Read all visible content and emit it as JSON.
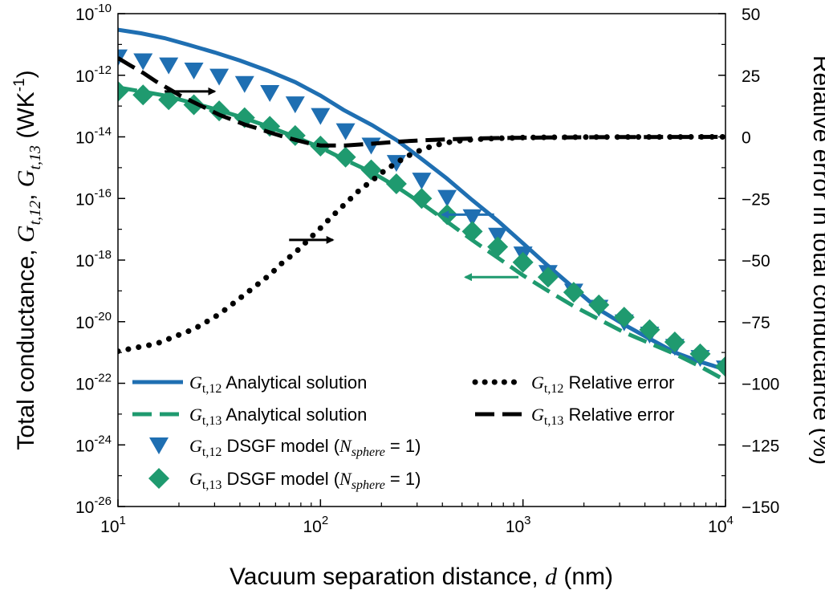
{
  "chart_data": {
    "type": "line",
    "x_axis": {
      "label_prefix": "Vacuum separation distance, ",
      "label_var": "d",
      "label_unit": " (nm)",
      "scale": "log",
      "range": [
        10,
        10000
      ],
      "ticks": [
        {
          "value": 10,
          "base": "10",
          "exp": "1"
        },
        {
          "value": 100,
          "base": "10",
          "exp": "2"
        },
        {
          "value": 1000,
          "base": "10",
          "exp": "3"
        },
        {
          "value": 10000,
          "base": "10",
          "exp": "4"
        }
      ]
    },
    "y_axis_left": {
      "label_prefix": "Total conductance, ",
      "label_var1": "G",
      "label_sub1": "t,12",
      "label_sep": ", ",
      "label_var2": "G",
      "label_sub2": "t,13",
      "label_unit": " (WK",
      "label_unit_exp": "-1",
      "label_unit_close": ")",
      "scale": "log",
      "range": [
        1e-26,
        1e-10
      ],
      "ticks": [
        {
          "value": 1e-10,
          "base": "10",
          "exp": "-10"
        },
        {
          "value": 1e-12,
          "base": "10",
          "exp": "-12"
        },
        {
          "value": 1e-14,
          "base": "10",
          "exp": "-14"
        },
        {
          "value": 1e-16,
          "base": "10",
          "exp": "-16"
        },
        {
          "value": 1e-18,
          "base": "10",
          "exp": "-18"
        },
        {
          "value": 1e-20,
          "base": "10",
          "exp": "-20"
        },
        {
          "value": 1e-22,
          "base": "10",
          "exp": "-22"
        },
        {
          "value": 1e-24,
          "base": "10",
          "exp": "-24"
        },
        {
          "value": 1e-26,
          "base": "10",
          "exp": "-26"
        }
      ]
    },
    "y_axis_right": {
      "label": "Relative error in total conductance (%)",
      "scale": "linear",
      "range": [
        -150,
        50
      ],
      "ticks": [
        "50",
        "25",
        "0",
        "-25",
        "-50",
        "-75",
        "-100",
        "-125",
        "-150"
      ]
    },
    "series": [
      {
        "name_var": "G",
        "name_sub": "t,12",
        "name_text": " Analytical solution",
        "axis": "left",
        "style": "solid",
        "color": "#1f6fb2",
        "x": [
          10,
          13,
          17,
          22,
          30,
          40,
          55,
          75,
          100,
          130,
          180,
          240,
          320,
          420,
          560,
          750,
          1000,
          1330,
          1780,
          2370,
          3160,
          4220,
          5620,
          7500,
          10000
        ],
        "y": [
          3e-11,
          2.3e-11,
          1.6e-11,
          1e-11,
          5.5e-12,
          3e-12,
          1.4e-12,
          6e-13,
          2.2e-13,
          7.5e-14,
          2.4e-14,
          7.5e-15,
          1.8e-15,
          4.5e-16,
          9e-17,
          1.9e-17,
          3.5e-18,
          6.5e-19,
          1.25e-19,
          2.5e-20,
          8e-21,
          2.8e-21,
          1e-21,
          5e-22,
          2.8e-22
        ]
      },
      {
        "name_var": "G",
        "name_sub": "t,13",
        "name_text": " Analytical solution",
        "axis": "left",
        "style": "dashed",
        "color": "#1f9a6f",
        "x": [
          10,
          13,
          17,
          22,
          30,
          40,
          55,
          75,
          100,
          130,
          180,
          240,
          320,
          420,
          560,
          750,
          1000,
          1330,
          1780,
          2370,
          3160,
          4220,
          5620,
          7500,
          10000
        ],
        "y": [
          4e-13,
          3e-13,
          2.2e-13,
          1.4e-13,
          8e-14,
          4.5e-14,
          2.2e-14,
          1e-14,
          4.5e-15,
          1.9e-15,
          7e-16,
          2.3e-16,
          6.5e-17,
          1.8e-17,
          4.5e-18,
          1.2e-18,
          3.2e-19,
          1e-19,
          3.2e-20,
          1.2e-20,
          4.5e-21,
          2e-21,
          9e-22,
          3.5e-22,
          1.25e-22
        ]
      },
      {
        "name_var": "G",
        "name_sub": "t,12",
        "name_text": " DSGF model (",
        "name_var2": "N",
        "name_sub2": "sphere",
        "name_text2": " = 1)",
        "axis": "left",
        "style": "marker-triangle-down",
        "color": "#1f6fb2",
        "x": [
          10,
          13.3,
          17.8,
          23.7,
          31.6,
          42.2,
          56.2,
          75,
          100,
          133,
          178,
          237,
          316,
          422,
          562,
          750,
          1000,
          1330,
          1780,
          2370,
          3160,
          4220,
          5620,
          7500,
          10000
        ],
        "y": [
          4e-12,
          3e-12,
          2.2e-12,
          1.5e-12,
          9.5e-13,
          5.5e-13,
          2.8e-13,
          1.2e-13,
          5e-14,
          1.6e-14,
          5.5e-15,
          1.5e-15,
          4e-16,
          1.1e-16,
          2.6e-17,
          6.5e-18,
          1.6e-18,
          4e-19,
          1e-19,
          3e-20,
          1e-20,
          4e-21,
          1.6e-21,
          7e-22,
          3.2e-22
        ]
      },
      {
        "name_var": "G",
        "name_sub": "t,13",
        "name_text": " DSGF model (",
        "name_var2": "N",
        "name_sub2": "sphere",
        "name_text2": " = 1)",
        "axis": "left",
        "style": "marker-diamond",
        "color": "#1f9a6f",
        "x": [
          10,
          13.3,
          17.8,
          23.7,
          31.6,
          42.2,
          56.2,
          75,
          100,
          133,
          178,
          237,
          316,
          422,
          562,
          750,
          1000,
          1330,
          1780,
          2370,
          3160,
          4220,
          5620,
          7500,
          10000
        ],
        "y": [
          3e-13,
          2.3e-13,
          1.6e-13,
          1.1e-13,
          7e-14,
          4.2e-14,
          2.2e-14,
          1.1e-14,
          5e-15,
          2.2e-15,
          8.5e-16,
          3e-16,
          1e-16,
          3e-17,
          8.5e-18,
          2.7e-18,
          8.5e-19,
          2.8e-19,
          9e-20,
          3.5e-20,
          1.4e-20,
          5.5e-21,
          2.2e-21,
          9e-22,
          3.5e-22
        ]
      },
      {
        "name_var": "G",
        "name_sub": "t,12",
        "name_text": " Relative error",
        "axis": "right",
        "style": "dotted",
        "color": "#000000",
        "x": [
          10,
          11.5,
          13.3,
          15.4,
          17.8,
          20.5,
          23.7,
          27.4,
          31.6,
          36.5,
          42.2,
          48.7,
          56.2,
          65,
          75,
          86.6,
          100,
          115,
          133,
          154,
          178,
          205,
          237,
          274,
          316,
          365,
          422,
          487,
          562,
          650,
          750,
          866,
          1000,
          1330,
          1780,
          2370,
          3160,
          4220,
          5620,
          7500,
          10000
        ],
        "y": [
          -87,
          -86,
          -85,
          -84,
          -82,
          -80,
          -78,
          -75,
          -72,
          -68,
          -64,
          -60,
          -56,
          -51,
          -47,
          -42,
          -37,
          -32,
          -27,
          -22,
          -18,
          -14,
          -10.5,
          -7.5,
          -5.2,
          -3.5,
          -2.3,
          -1.6,
          -1.1,
          -0.8,
          -0.6,
          -0.45,
          -0.3,
          -0.2,
          -0.12,
          -0.08,
          -0.05,
          -0.03,
          -0.02,
          -0.01,
          0
        ]
      },
      {
        "name_var": "G",
        "name_sub": "t,13",
        "name_text": " Relative error",
        "axis": "right",
        "style": "dashed",
        "color": "#000000",
        "x": [
          10,
          11.5,
          13.3,
          15.4,
          17.8,
          20.5,
          23.7,
          27.4,
          31.6,
          36.5,
          42.2,
          48.7,
          56.2,
          65,
          75,
          86.6,
          100,
          133,
          178,
          237,
          316,
          422,
          562,
          750,
          1000,
          1330,
          1780,
          2370,
          3160,
          4220,
          5620,
          7500,
          10000
        ],
        "y": [
          32,
          29,
          26,
          22.5,
          19.5,
          16.5,
          14,
          11.5,
          9,
          7,
          5,
          3.5,
          1.8,
          0.2,
          -1.2,
          -2.5,
          -3.5,
          -3.5,
          -2.8,
          -2.0,
          -1.4,
          -1.0,
          -0.7,
          -0.5,
          -0.35,
          -0.25,
          -0.18,
          -0.12,
          -0.08,
          -0.05,
          -0.03,
          -0.02,
          -0.01
        ]
      }
    ],
    "annotations": [
      {
        "type": "arrow",
        "direction": "right",
        "x_start": 17,
        "x_end": 30,
        "axis": "left",
        "y": 3e-13
      },
      {
        "type": "arrow",
        "direction": "right",
        "x_start": 70,
        "x_end": 115,
        "axis": "left",
        "y": 4.5e-18
      },
      {
        "type": "arrow",
        "direction": "left",
        "x_start": 720,
        "x_end": 400,
        "axis": "left",
        "y": 3e-17
      },
      {
        "type": "arrow",
        "direction": "left",
        "x_start": 950,
        "x_end": 520,
        "axis": "left",
        "y": 2.8e-19
      }
    ],
    "legend": {
      "placement": "bottom"
    },
    "grid": false
  }
}
